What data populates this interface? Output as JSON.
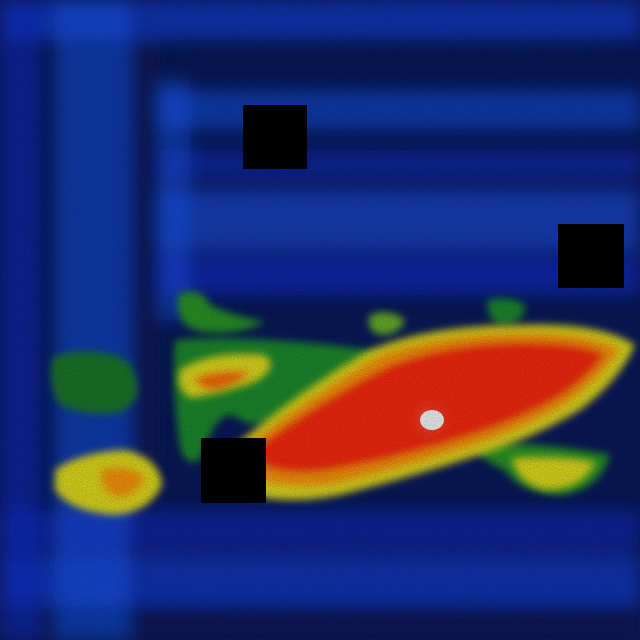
{
  "image": {
    "kind": "thermal-heatmap",
    "palette": {
      "background": "#0a1a5e",
      "cold": "#0b2fd1",
      "cool": "#1a5cff",
      "mild": "#1f8f2f",
      "warm": "#e7e21a",
      "hot": "#ff2a0a",
      "hottest": "#ffffff"
    },
    "occluded_regions_count": 3
  }
}
